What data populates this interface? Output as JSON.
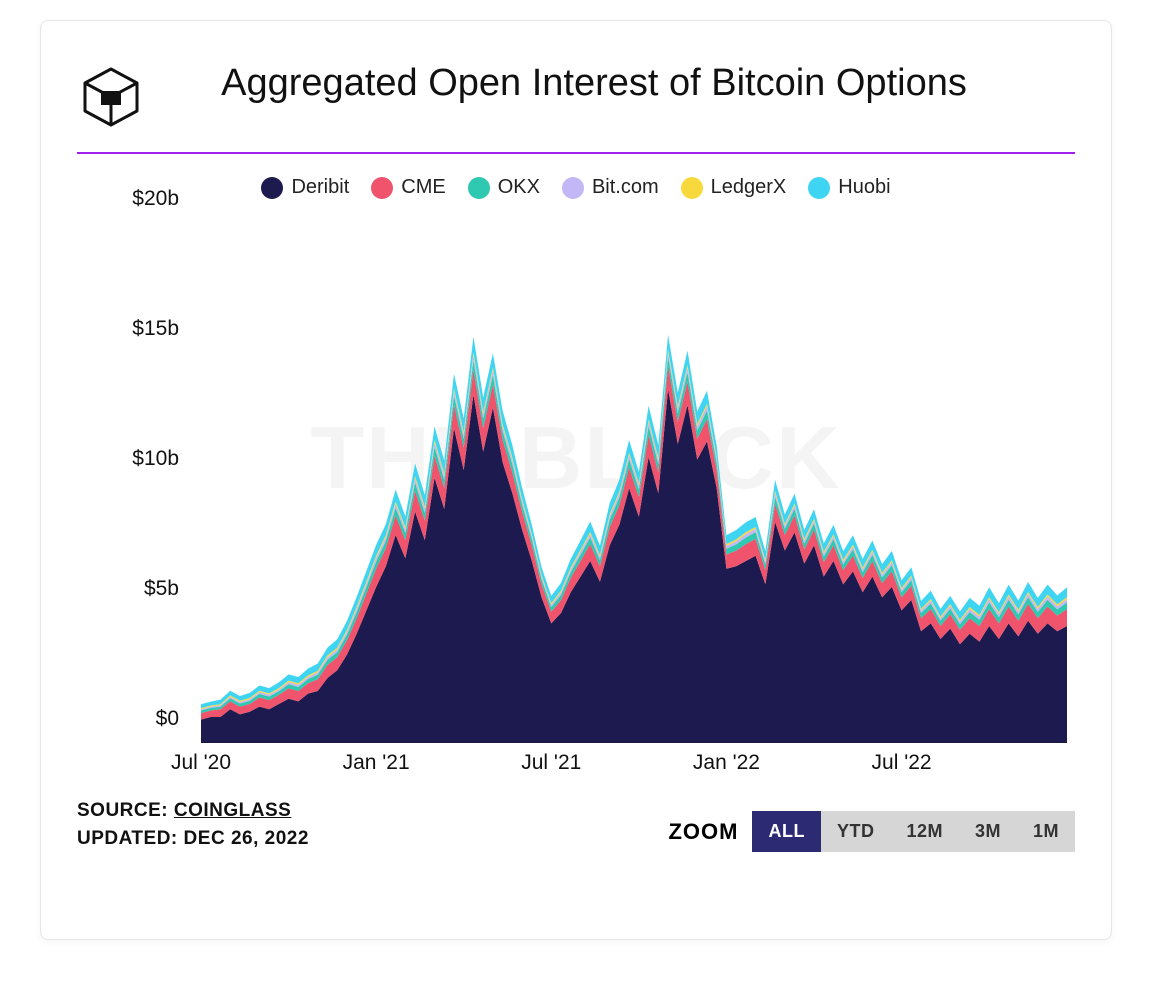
{
  "title": "Aggregated Open Interest of Bitcoin Options",
  "accent_color": "#a020f0",
  "watermark": "THE BLOCK",
  "source_label": "SOURCE:",
  "source_name": "COINGLASS",
  "updated_label": "UPDATED:",
  "updated_value": "DEC 26, 2022",
  "zoom_label": "ZOOM",
  "zoom_buttons": [
    {
      "label": "ALL",
      "active": true
    },
    {
      "label": "YTD",
      "active": false
    },
    {
      "label": "12M",
      "active": false
    },
    {
      "label": "3M",
      "active": false
    },
    {
      "label": "1M",
      "active": false
    }
  ],
  "zoom_btn_bg": "#d6d6d6",
  "zoom_btn_fg": "#333333",
  "zoom_btn_active_bg": "#2c2a73",
  "zoom_btn_active_fg": "#ffffff",
  "legend": [
    {
      "name": "Deribit",
      "color": "#1d1a4f"
    },
    {
      "name": "CME",
      "color": "#f0546c"
    },
    {
      "name": "OKX",
      "color": "#2fc8b0"
    },
    {
      "name": "Bit.com",
      "color": "#c3b8f5"
    },
    {
      "name": "LedgerX",
      "color": "#f7d93e"
    },
    {
      "name": "Huobi",
      "color": "#3fd5f2"
    }
  ],
  "chart": {
    "type": "stacked-area",
    "background_color": "#ffffff",
    "axis_color": "#111111",
    "label_fontsize": 21,
    "title_fontsize": 38,
    "ylim": [
      0,
      20
    ],
    "y_ticks": [
      0,
      5,
      10,
      15,
      20
    ],
    "y_tick_labels": [
      "$0",
      "$5b",
      "$10b",
      "$15b",
      "$20b"
    ],
    "y_unit": "$b",
    "x_tick_indices": [
      0,
      18,
      36,
      54,
      72
    ],
    "x_tick_labels": [
      "Jul '20",
      "Jan '21",
      "Jul '21",
      "Jan '22",
      "Jul '22"
    ],
    "n_points": 90,
    "series_order": [
      "Deribit",
      "CME",
      "OKX",
      "Bit.com",
      "LedgerX",
      "Huobi"
    ],
    "series": {
      "Deribit": [
        0.9,
        1.0,
        1.0,
        1.3,
        1.1,
        1.2,
        1.4,
        1.3,
        1.5,
        1.7,
        1.6,
        1.9,
        2.0,
        2.5,
        2.8,
        3.4,
        4.2,
        5.1,
        6.0,
        6.8,
        8.0,
        7.1,
        8.9,
        7.8,
        10.2,
        9.0,
        12.1,
        10.5,
        13.4,
        11.2,
        12.9,
        10.8,
        9.6,
        8.2,
        7.0,
        5.6,
        4.6,
        5.0,
        5.8,
        6.4,
        7.0,
        6.2,
        7.6,
        8.4,
        9.8,
        8.7,
        11.0,
        9.6,
        13.6,
        11.5,
        13.0,
        10.9,
        11.6,
        9.8,
        6.7,
        6.8,
        7.0,
        7.2,
        6.1,
        8.5,
        7.4,
        8.1,
        6.9,
        7.6,
        6.4,
        7.0,
        6.1,
        6.6,
        5.8,
        6.4,
        5.6,
        6.0,
        5.1,
        5.5,
        4.3,
        4.6,
        4.0,
        4.4,
        3.8,
        4.2,
        3.9,
        4.5,
        4.0,
        4.6,
        4.1,
        4.7,
        4.2,
        4.6,
        4.3,
        4.5
      ],
      "CME": [
        0.25,
        0.25,
        0.3,
        0.3,
        0.3,
        0.3,
        0.35,
        0.35,
        0.35,
        0.4,
        0.4,
        0.4,
        0.45,
        0.5,
        0.5,
        0.55,
        0.6,
        0.65,
        0.7,
        0.7,
        0.75,
        0.7,
        0.8,
        0.75,
        0.85,
        0.8,
        0.9,
        0.85,
        0.95,
        0.9,
        0.9,
        0.85,
        0.8,
        0.7,
        0.6,
        0.5,
        0.45,
        0.5,
        0.55,
        0.6,
        0.65,
        0.6,
        0.7,
        0.75,
        0.8,
        0.75,
        0.85,
        0.8,
        0.9,
        0.85,
        0.9,
        0.8,
        0.85,
        0.7,
        0.55,
        0.6,
        0.65,
        0.65,
        0.55,
        0.7,
        0.6,
        0.65,
        0.55,
        0.6,
        0.55,
        0.6,
        0.55,
        0.6,
        0.55,
        0.6,
        0.55,
        0.6,
        0.5,
        0.55,
        0.5,
        0.55,
        0.5,
        0.55,
        0.55,
        0.6,
        0.6,
        0.65,
        0.6,
        0.65,
        0.6,
        0.65,
        0.6,
        0.65,
        0.6,
        0.65
      ],
      "OKX": [
        0.1,
        0.1,
        0.1,
        0.12,
        0.12,
        0.12,
        0.14,
        0.14,
        0.14,
        0.16,
        0.16,
        0.16,
        0.18,
        0.2,
        0.2,
        0.22,
        0.24,
        0.26,
        0.28,
        0.28,
        0.3,
        0.28,
        0.32,
        0.3,
        0.34,
        0.32,
        0.36,
        0.34,
        0.38,
        0.36,
        0.36,
        0.34,
        0.32,
        0.28,
        0.24,
        0.2,
        0.18,
        0.2,
        0.22,
        0.24,
        0.26,
        0.24,
        0.28,
        0.3,
        0.32,
        0.3,
        0.34,
        0.32,
        0.36,
        0.34,
        0.36,
        0.32,
        0.34,
        0.28,
        0.22,
        0.24,
        0.26,
        0.26,
        0.22,
        0.28,
        0.24,
        0.26,
        0.22,
        0.24,
        0.22,
        0.24,
        0.22,
        0.24,
        0.22,
        0.24,
        0.22,
        0.24,
        0.2,
        0.22,
        0.2,
        0.22,
        0.2,
        0.22,
        0.22,
        0.24,
        0.24,
        0.26,
        0.24,
        0.26,
        0.24,
        0.26,
        0.24,
        0.26,
        0.24,
        0.26
      ],
      "Bit.com": [
        0.05,
        0.05,
        0.05,
        0.06,
        0.06,
        0.06,
        0.07,
        0.07,
        0.07,
        0.08,
        0.08,
        0.08,
        0.09,
        0.1,
        0.1,
        0.11,
        0.12,
        0.13,
        0.14,
        0.14,
        0.15,
        0.14,
        0.16,
        0.15,
        0.17,
        0.16,
        0.18,
        0.17,
        0.19,
        0.18,
        0.18,
        0.17,
        0.16,
        0.14,
        0.12,
        0.1,
        0.09,
        0.1,
        0.11,
        0.12,
        0.13,
        0.12,
        0.14,
        0.15,
        0.16,
        0.15,
        0.17,
        0.16,
        0.18,
        0.17,
        0.18,
        0.16,
        0.17,
        0.14,
        0.11,
        0.12,
        0.13,
        0.13,
        0.11,
        0.14,
        0.12,
        0.13,
        0.11,
        0.12,
        0.11,
        0.12,
        0.11,
        0.12,
        0.11,
        0.12,
        0.11,
        0.12,
        0.1,
        0.11,
        0.1,
        0.11,
        0.1,
        0.11,
        0.11,
        0.12,
        0.12,
        0.13,
        0.12,
        0.13,
        0.12,
        0.13,
        0.12,
        0.13,
        0.12,
        0.13
      ],
      "LedgerX": [
        0.04,
        0.04,
        0.04,
        0.05,
        0.05,
        0.05,
        0.05,
        0.05,
        0.05,
        0.06,
        0.06,
        0.06,
        0.06,
        0.07,
        0.07,
        0.07,
        0.08,
        0.08,
        0.08,
        0.08,
        0.09,
        0.08,
        0.09,
        0.09,
        0.1,
        0.09,
        0.1,
        0.1,
        0.11,
        0.1,
        0.1,
        0.1,
        0.09,
        0.08,
        0.07,
        0.06,
        0.06,
        0.06,
        0.07,
        0.07,
        0.08,
        0.07,
        0.08,
        0.08,
        0.09,
        0.08,
        0.09,
        0.09,
        0.1,
        0.09,
        0.1,
        0.09,
        0.09,
        0.08,
        0.07,
        0.07,
        0.07,
        0.07,
        0.07,
        0.08,
        0.07,
        0.07,
        0.07,
        0.07,
        0.07,
        0.07,
        0.07,
        0.07,
        0.07,
        0.07,
        0.07,
        0.07,
        0.06,
        0.06,
        0.06,
        0.06,
        0.06,
        0.06,
        0.06,
        0.07,
        0.07,
        0.07,
        0.07,
        0.07,
        0.07,
        0.07,
        0.07,
        0.07,
        0.07,
        0.07
      ],
      "Huobi": [
        0.15,
        0.15,
        0.18,
        0.18,
        0.18,
        0.2,
        0.2,
        0.2,
        0.22,
        0.24,
        0.24,
        0.26,
        0.28,
        0.3,
        0.32,
        0.34,
        0.38,
        0.4,
        0.42,
        0.42,
        0.46,
        0.42,
        0.48,
        0.45,
        0.52,
        0.48,
        0.56,
        0.52,
        0.6,
        0.55,
        0.55,
        0.52,
        0.48,
        0.42,
        0.36,
        0.3,
        0.28,
        0.3,
        0.33,
        0.36,
        0.4,
        0.36,
        0.42,
        0.45,
        0.48,
        0.45,
        0.52,
        0.48,
        0.56,
        0.52,
        0.55,
        0.48,
        0.5,
        0.42,
        0.34,
        0.36,
        0.38,
        0.38,
        0.33,
        0.42,
        0.36,
        0.38,
        0.34,
        0.36,
        0.33,
        0.36,
        0.33,
        0.36,
        0.33,
        0.36,
        0.33,
        0.36,
        0.3,
        0.32,
        0.3,
        0.32,
        0.3,
        0.32,
        0.32,
        0.35,
        0.35,
        0.38,
        0.35,
        0.38,
        0.35,
        0.38,
        0.35,
        0.38,
        0.35,
        0.38
      ]
    }
  }
}
